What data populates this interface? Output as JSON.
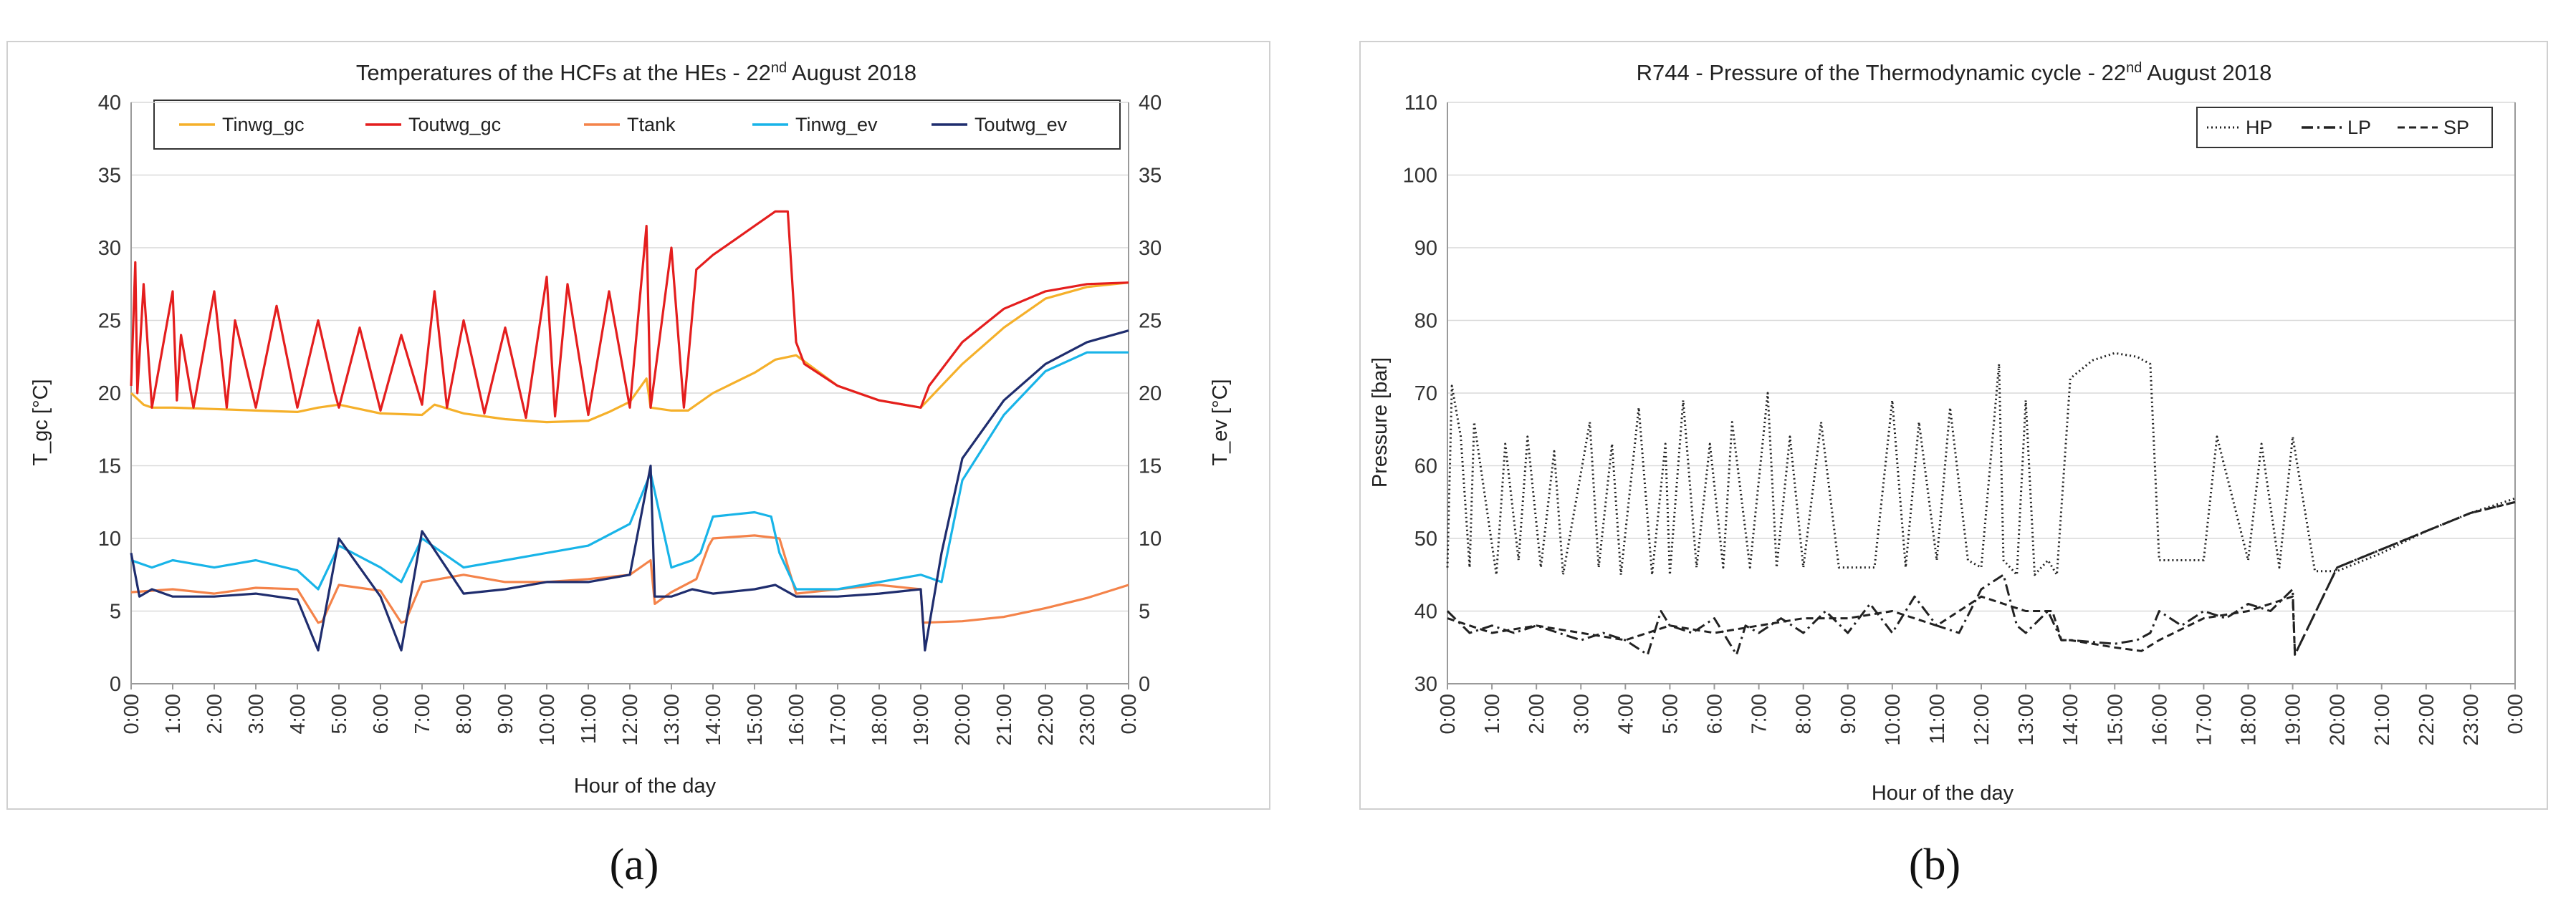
{
  "chart_data": [
    {
      "panel_label": "(a)",
      "type": "line",
      "title_prefix": "Temperatures of the HCFs at the HEs - 22",
      "title_sup": "nd",
      "title_suffix": " August 2018",
      "xlabel": "Hour of the day",
      "ylabel": "T_gc [°C]",
      "y2label": "T_ev [°C]",
      "ylim": [
        0,
        40
      ],
      "y2lim": [
        0,
        40
      ],
      "yticks": [
        "0",
        "5",
        "10",
        "15",
        "20",
        "25",
        "30",
        "35",
        "40"
      ],
      "y2ticks": [
        "0",
        "5",
        "10",
        "15",
        "20",
        "25",
        "30",
        "35",
        "40"
      ],
      "xticks": [
        "0:00",
        "1:00",
        "2:00",
        "3:00",
        "4:00",
        "5:00",
        "6:00",
        "7:00",
        "8:00",
        "9:00",
        "10:00",
        "11:00",
        "12:00",
        "13:00",
        "14:00",
        "15:00",
        "16:00",
        "17:00",
        "18:00",
        "19:00",
        "20:00",
        "21:00",
        "22:00",
        "23:00",
        "0:00"
      ],
      "xlim": [
        0,
        24
      ],
      "grid": true,
      "legend_position": "top",
      "series": [
        {
          "name": "Tinwg_gc",
          "color": "#f5b02a",
          "axis": "left",
          "x": [
            0,
            0.3,
            0.5,
            1,
            2,
            3,
            4,
            4.5,
            5,
            6,
            7,
            7.3,
            8,
            9,
            10,
            11,
            11.5,
            12,
            12.4,
            12.5,
            13,
            13.4,
            14,
            15,
            15.5,
            16,
            17,
            18,
            19,
            20,
            21,
            22,
            23,
            24
          ],
          "y": [
            20,
            19.2,
            19.0,
            19.0,
            18.9,
            18.8,
            18.7,
            19.0,
            19.2,
            18.6,
            18.5,
            19.2,
            18.6,
            18.2,
            18.0,
            18.1,
            18.7,
            19.4,
            21.0,
            19.0,
            18.8,
            18.8,
            20.0,
            21.4,
            22.3,
            22.6,
            20.5,
            19.5,
            19.0,
            22.0,
            24.5,
            26.5,
            27.3,
            27.6
          ]
        },
        {
          "name": "Toutwg_gc",
          "color": "#e41e1e",
          "axis": "left",
          "x": [
            0,
            0.1,
            0.15,
            0.3,
            0.5,
            1,
            1.1,
            1.2,
            1.5,
            2,
            2.3,
            2.5,
            3,
            3.5,
            4,
            4.5,
            4.9,
            5,
            5.5,
            6,
            6.5,
            7,
            7.3,
            7.6,
            8,
            8.5,
            9,
            9.5,
            10,
            10.2,
            10.5,
            11,
            11.5,
            12,
            12.4,
            12.5,
            13,
            13.3,
            13.6,
            14,
            14.5,
            15,
            15.5,
            15.8,
            16,
            16.2,
            17,
            18,
            19,
            19.2,
            20,
            21,
            22,
            23,
            24
          ],
          "y": [
            20.5,
            29,
            20,
            27.5,
            19,
            27,
            19.5,
            24,
            19,
            27,
            19,
            25,
            19,
            26,
            19,
            25,
            20,
            19,
            24.5,
            18.8,
            24,
            19.2,
            27,
            19,
            25,
            18.6,
            24.5,
            18.3,
            28,
            18.4,
            27.5,
            18.5,
            27,
            19,
            31.5,
            19,
            30,
            19,
            28.5,
            29.5,
            30.5,
            31.5,
            32.5,
            32.5,
            23.5,
            22,
            20.5,
            19.5,
            19.0,
            20.5,
            23.5,
            25.8,
            27,
            27.5,
            27.6
          ]
        },
        {
          "name": "Ttank",
          "color": "#f4834a",
          "axis": "right",
          "x": [
            0,
            1,
            2,
            3,
            4,
            4.5,
            4.6,
            5,
            6,
            6.5,
            6.6,
            7,
            8,
            9,
            10,
            11,
            12,
            12.5,
            12.6,
            13,
            13.6,
            13.9,
            14,
            15,
            15.6,
            16,
            17,
            18,
            19,
            19.05,
            20,
            21,
            22,
            23,
            24
          ],
          "y": [
            6.3,
            6.5,
            6.2,
            6.6,
            6.5,
            4.2,
            4.3,
            6.8,
            6.4,
            4.2,
            4.3,
            7.0,
            7.5,
            7.0,
            7.0,
            7.2,
            7.5,
            8.5,
            5.5,
            6.3,
            7.2,
            9.5,
            10,
            10.2,
            10.0,
            6.2,
            6.5,
            6.8,
            6.5,
            4.2,
            4.3,
            4.6,
            5.2,
            5.9,
            6.8
          ]
        },
        {
          "name": "Tinwg_ev",
          "color": "#18b4e8",
          "axis": "right",
          "x": [
            0,
            0.5,
            1,
            2,
            3,
            4,
            4.5,
            5,
            6,
            6.5,
            7,
            8,
            9,
            10,
            11,
            12,
            12.5,
            13,
            13.5,
            13.7,
            14,
            15,
            15.4,
            15.6,
            16,
            17,
            18,
            19,
            19.5,
            20,
            21,
            22,
            23,
            24
          ],
          "y": [
            8.5,
            8.0,
            8.5,
            8.0,
            8.5,
            7.8,
            6.5,
            9.5,
            8.0,
            7.0,
            10.0,
            8.0,
            8.5,
            9.0,
            9.5,
            11.0,
            14.5,
            8.0,
            8.5,
            9.0,
            11.5,
            11.8,
            11.5,
            9.0,
            6.5,
            6.5,
            7.0,
            7.5,
            7.0,
            14.0,
            18.5,
            21.5,
            22.8,
            22.8
          ]
        },
        {
          "name": "Toutwg_ev",
          "color": "#1f2d6e",
          "axis": "right",
          "x": [
            0,
            0.2,
            0.5,
            1,
            2,
            3,
            4,
            4.5,
            5,
            6,
            6.5,
            7,
            8,
            9,
            10,
            11,
            12,
            12.5,
            12.6,
            13,
            13.5,
            14,
            15,
            15.5,
            16,
            17,
            18,
            19,
            19.1,
            19.5,
            20,
            21,
            22,
            23,
            24
          ],
          "y": [
            9.0,
            6.0,
            6.5,
            6.0,
            6.0,
            6.2,
            5.8,
            2.3,
            10.0,
            6.0,
            2.3,
            10.5,
            6.2,
            6.5,
            7.0,
            7.0,
            7.5,
            15.0,
            6.0,
            6.0,
            6.5,
            6.2,
            6.5,
            6.8,
            6.0,
            6.0,
            6.2,
            6.5,
            2.3,
            9.0,
            15.5,
            19.5,
            22.0,
            23.5,
            24.3
          ]
        }
      ]
    },
    {
      "panel_label": "(b)",
      "type": "line",
      "title_prefix": "R744 - Pressure of the Thermodynamic cycle - 22",
      "title_sup": "nd",
      "title_suffix": " August 2018",
      "xlabel": "Hour of the day",
      "ylabel": "Pressure [bar]",
      "ylim": [
        30,
        110
      ],
      "yticks": [
        "30",
        "40",
        "50",
        "60",
        "70",
        "80",
        "90",
        "100",
        "110"
      ],
      "xticks": [
        "0:00",
        "1:00",
        "2:00",
        "3:00",
        "4:00",
        "5:00",
        "6:00",
        "7:00",
        "8:00",
        "9:00",
        "10:00",
        "11:00",
        "12:00",
        "13:00",
        "14:00",
        "15:00",
        "16:00",
        "17:00",
        "18:00",
        "19:00",
        "20:00",
        "21:00",
        "22:00",
        "23:00",
        "0:00"
      ],
      "xlim": [
        0,
        24
      ],
      "grid": true,
      "legend_position": "top-right",
      "series": [
        {
          "name": "HP",
          "color": "#222222",
          "dash": "dotted",
          "axis": "left",
          "x": [
            0,
            0.1,
            0.3,
            0.5,
            0.6,
            1.1,
            1.3,
            1.6,
            1.8,
            2.1,
            2.4,
            2.6,
            3.2,
            3.4,
            3.7,
            3.9,
            4.3,
            4.6,
            4.9,
            5.0,
            5.3,
            5.6,
            5.9,
            6.2,
            6.4,
            6.8,
            7.2,
            7.4,
            7.7,
            8.0,
            8.4,
            8.8,
            9.2,
            9.6,
            10.0,
            10.3,
            10.6,
            11.0,
            11.3,
            11.7,
            12.0,
            12.4,
            12.5,
            12.8,
            13.0,
            13.2,
            13.5,
            13.7,
            14,
            14.5,
            15,
            15.5,
            15.8,
            16,
            16.5,
            17,
            17.3,
            18,
            18.3,
            18.7,
            19,
            19.5,
            20,
            21,
            22,
            23,
            24
          ],
          "y": [
            46,
            71,
            64,
            46,
            66,
            45,
            63,
            47,
            64,
            46,
            62,
            45,
            66,
            46,
            63,
            45,
            68,
            45,
            63,
            45,
            69,
            46,
            63,
            46,
            66,
            46,
            70,
            46,
            64,
            46,
            66,
            46,
            46,
            46,
            69,
            46,
            66,
            47,
            68,
            47,
            46,
            74,
            47,
            45,
            69,
            45,
            47,
            45,
            72,
            74.5,
            75.5,
            75,
            74,
            47,
            47,
            47,
            64,
            47,
            63,
            46,
            64,
            45.5,
            45.5,
            48,
            51,
            53.5,
            55.5
          ]
        },
        {
          "name": "LP",
          "color": "#222222",
          "dash": "dashdot",
          "axis": "left",
          "x": [
            0,
            0.5,
            1,
            1.5,
            2,
            2.5,
            3,
            3.5,
            4,
            4.5,
            4.8,
            5,
            5.5,
            6,
            6.5,
            6.7,
            7,
            7.5,
            8,
            8.5,
            9,
            9.5,
            10,
            10.5,
            11,
            11.5,
            12,
            12.5,
            12.8,
            13,
            13.5,
            13.8,
            14,
            15,
            15.5,
            15.8,
            16,
            16.5,
            17,
            17.5,
            18,
            18.5,
            19,
            19.05,
            20,
            21,
            22,
            23,
            24
          ],
          "y": [
            40,
            37,
            38,
            37,
            38,
            37,
            36,
            37,
            36,
            34,
            40,
            38,
            37,
            39,
            34,
            38,
            37,
            39,
            37,
            40,
            37,
            41,
            37,
            42,
            38,
            37,
            43,
            45,
            38,
            37,
            40,
            36,
            36,
            35.5,
            36,
            37,
            40,
            38,
            40,
            39,
            41,
            40,
            43,
            34,
            46,
            48.5,
            51,
            53.5,
            55
          ]
        },
        {
          "name": "SP",
          "color": "#222222",
          "dash": "dashed",
          "axis": "left",
          "x": [
            0,
            1,
            2,
            3,
            4,
            5,
            6,
            7,
            8,
            9,
            10,
            11,
            12,
            13,
            13.6,
            13.8,
            14,
            15,
            15.6,
            16,
            17,
            18,
            19,
            19.05,
            20,
            21,
            22,
            23,
            24
          ],
          "y": [
            39,
            37,
            38,
            37,
            36,
            38,
            37,
            38,
            39,
            39,
            40,
            38,
            42,
            40,
            40,
            36,
            36,
            35,
            34.5,
            36,
            39,
            40,
            42,
            34,
            46,
            48.5,
            51,
            53.5,
            55
          ]
        }
      ]
    }
  ]
}
